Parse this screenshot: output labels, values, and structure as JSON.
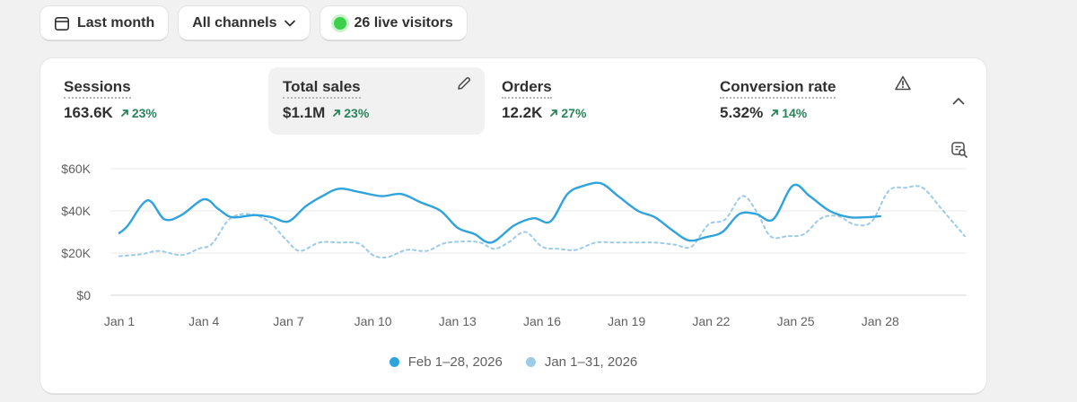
{
  "toolbar": {
    "date_range": "Last month",
    "channels": "All channels",
    "live_visitors": "26 live visitors"
  },
  "metrics": [
    {
      "label": "Sessions",
      "value": "163.6K",
      "change": "23%"
    },
    {
      "label": "Total sales",
      "value": "$1.1M",
      "change": "23%"
    },
    {
      "label": "Orders",
      "value": "12.2K",
      "change": "27%"
    },
    {
      "label": "Conversion rate",
      "value": "5.32%",
      "change": "14%"
    }
  ],
  "colors": {
    "current": "#2fa3dc",
    "previous": "#9ccbea",
    "positive": "#29845a",
    "live": "#3ad04a"
  },
  "legend": {
    "current": "Feb 1–28, 2026",
    "previous": "Jan 1–31, 2026"
  },
  "chart_data": {
    "type": "line",
    "title": "Total sales",
    "xlabel": "",
    "ylabel": "",
    "ylim": [
      0,
      60000
    ],
    "yticks": [
      "$0",
      "$20K",
      "$40K",
      "$60K"
    ],
    "ytick_values": [
      0,
      20000,
      40000,
      60000
    ],
    "x_tick_labels": [
      "Jan 1",
      "Jan 4",
      "Jan 7",
      "Jan 10",
      "Jan 13",
      "Jan 16",
      "Jan 19",
      "Jan 22",
      "Jan 25",
      "Jan 28"
    ],
    "x_tick_days": [
      1,
      4,
      7,
      10,
      13,
      16,
      19,
      22,
      25,
      28
    ],
    "x_range": [
      1,
      31
    ],
    "legend_position": "bottom-center",
    "grid": true,
    "series": [
      {
        "name": "Feb 1–28, 2026",
        "style": "solid",
        "x": [
          1,
          1.3,
          2,
          2.6,
          3.2,
          4,
          4.5,
          5,
          5.8,
          6.4,
          7,
          7.6,
          8.2,
          8.8,
          9.5,
          10.3,
          11,
          11.7,
          12.4,
          13,
          13.6,
          14.2,
          15,
          15.7,
          16.3,
          16.9,
          17.5,
          18.1,
          18.7,
          19.4,
          20,
          20.6,
          21.2,
          21.8,
          22.4,
          23,
          23.6,
          24.2,
          24.9,
          25.5,
          26.2,
          26.9,
          27.5,
          28
        ],
        "y": [
          29500,
          33000,
          45000,
          36000,
          38000,
          45500,
          41000,
          37000,
          38000,
          37000,
          35000,
          42000,
          47000,
          50500,
          49000,
          47000,
          48000,
          44000,
          40000,
          32000,
          29000,
          25000,
          33000,
          36500,
          35000,
          48000,
          52000,
          53000,
          47000,
          40000,
          37000,
          31000,
          26000,
          27500,
          30000,
          38500,
          38500,
          36000,
          52000,
          47000,
          40000,
          37000,
          37000,
          37500
        ]
      },
      {
        "name": "Jan 1–31, 2026",
        "style": "dashed",
        "x": [
          1,
          1.8,
          2.4,
          3.2,
          3.8,
          4.3,
          4.9,
          5.6,
          6.3,
          6.9,
          7.4,
          8.1,
          8.8,
          9.5,
          10,
          10.5,
          11.2,
          11.9,
          12.5,
          13.2,
          13.8,
          14.3,
          14.8,
          15.4,
          16,
          16.6,
          17.2,
          17.9,
          18.6,
          19.3,
          20,
          20.7,
          21.3,
          21.9,
          22.5,
          23.1,
          23.6,
          24.1,
          24.7,
          25.3,
          25.9,
          26.5,
          27.1,
          27.7,
          28.3,
          28.9,
          29.5,
          30.2,
          31
        ],
        "y": [
          18500,
          19500,
          21000,
          19000,
          22000,
          24500,
          36000,
          38500,
          35000,
          26500,
          21000,
          25000,
          25000,
          24500,
          19000,
          18000,
          21500,
          21000,
          24500,
          25500,
          25000,
          22000,
          25000,
          30000,
          23000,
          22000,
          21500,
          25000,
          25000,
          25000,
          25000,
          24000,
          23000,
          33500,
          36000,
          47000,
          40000,
          28000,
          28000,
          29000,
          36500,
          37500,
          33500,
          35000,
          49500,
          51000,
          51000,
          40500,
          28000
        ]
      }
    ]
  }
}
